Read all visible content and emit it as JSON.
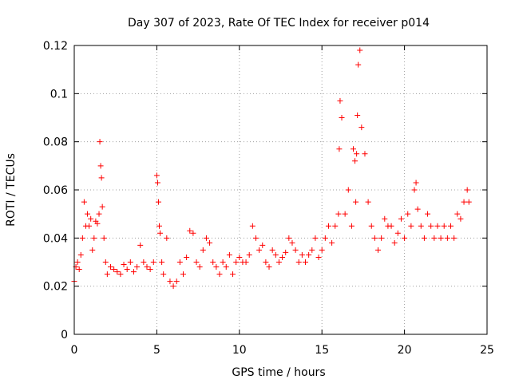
{
  "chart_data": {
    "type": "scatter",
    "title": "Day 307 of 2023, Rate Of TEC Index for receiver p014",
    "xlabel": "GPS time / hours",
    "ylabel": "ROTI / TECUs",
    "xlim": [
      0,
      25
    ],
    "ylim": [
      0,
      0.12
    ],
    "x_ticks": [
      "0",
      "5",
      "10",
      "15",
      "20",
      "25"
    ],
    "y_ticks": [
      "0",
      "0.02",
      "0.04",
      "0.06",
      "0.08",
      "0.1",
      "0.12"
    ],
    "grid": true,
    "marker": "+",
    "color": "#ff0000",
    "series": [
      {
        "x": [
          0.0,
          0.1,
          0.2,
          0.3,
          0.4,
          0.5,
          0.6,
          0.7,
          0.8,
          0.9,
          1.0,
          1.1,
          1.2,
          1.3,
          1.4,
          1.5,
          1.55,
          1.6,
          1.65,
          1.7,
          1.8,
          1.9,
          2.0,
          2.2,
          2.4,
          2.6,
          2.8,
          3.0,
          3.2,
          3.4,
          3.6,
          3.8,
          4.0,
          4.2,
          4.4,
          4.6,
          4.8,
          5.0,
          5.05,
          5.1,
          5.15,
          5.2,
          5.3,
          5.4,
          5.6,
          5.8,
          6.0,
          6.2,
          6.4,
          6.6,
          6.8,
          7.0,
          7.2,
          7.4,
          7.6,
          7.8,
          8.0,
          8.2,
          8.4,
          8.6,
          8.8,
          9.0,
          9.2,
          9.4,
          9.6,
          9.8,
          10.0,
          10.2,
          10.4,
          10.6,
          10.8,
          11.0,
          11.2,
          11.4,
          11.6,
          11.8,
          12.0,
          12.2,
          12.4,
          12.6,
          12.8,
          13.0,
          13.2,
          13.4,
          13.6,
          13.8,
          14.0,
          14.2,
          14.4,
          14.6,
          14.8,
          15.0,
          15.2,
          15.4,
          15.6,
          15.8,
          16.0,
          16.05,
          16.1,
          16.2,
          16.4,
          16.6,
          16.8,
          16.9,
          17.0,
          17.05,
          17.1,
          17.15,
          17.2,
          17.3,
          17.4,
          17.6,
          17.8,
          18.0,
          18.2,
          18.4,
          18.6,
          18.8,
          19.0,
          19.2,
          19.4,
          19.6,
          19.8,
          20.0,
          20.2,
          20.4,
          20.6,
          20.7,
          20.8,
          21.0,
          21.2,
          21.4,
          21.6,
          21.8,
          22.0,
          22.2,
          22.4,
          22.6,
          22.8,
          23.0,
          23.2,
          23.4,
          23.6,
          23.8,
          23.9
        ],
        "y": [
          0.022,
          0.028,
          0.03,
          0.027,
          0.033,
          0.04,
          0.055,
          0.045,
          0.05,
          0.045,
          0.048,
          0.035,
          0.04,
          0.047,
          0.046,
          0.05,
          0.08,
          0.07,
          0.065,
          0.053,
          0.04,
          0.03,
          0.025,
          0.028,
          0.027,
          0.026,
          0.025,
          0.029,
          0.027,
          0.03,
          0.026,
          0.028,
          0.037,
          0.03,
          0.028,
          0.027,
          0.03,
          0.066,
          0.063,
          0.055,
          0.045,
          0.042,
          0.03,
          0.025,
          0.04,
          0.022,
          0.02,
          0.022,
          0.03,
          0.025,
          0.032,
          0.043,
          0.042,
          0.03,
          0.028,
          0.035,
          0.04,
          0.038,
          0.03,
          0.028,
          0.025,
          0.03,
          0.028,
          0.033,
          0.025,
          0.03,
          0.032,
          0.03,
          0.03,
          0.033,
          0.045,
          0.04,
          0.035,
          0.037,
          0.03,
          0.028,
          0.035,
          0.033,
          0.03,
          0.032,
          0.034,
          0.04,
          0.038,
          0.035,
          0.03,
          0.033,
          0.03,
          0.033,
          0.035,
          0.04,
          0.032,
          0.035,
          0.04,
          0.045,
          0.038,
          0.045,
          0.05,
          0.077,
          0.097,
          0.09,
          0.05,
          0.06,
          0.045,
          0.077,
          0.072,
          0.055,
          0.075,
          0.091,
          0.112,
          0.118,
          0.086,
          0.075,
          0.055,
          0.045,
          0.04,
          0.035,
          0.04,
          0.048,
          0.045,
          0.045,
          0.038,
          0.042,
          0.048,
          0.04,
          0.05,
          0.045,
          0.06,
          0.063,
          0.052,
          0.045,
          0.04,
          0.05,
          0.045,
          0.04,
          0.045,
          0.04,
          0.045,
          0.04,
          0.045,
          0.04,
          0.05,
          0.048,
          0.055,
          0.06,
          0.055
        ]
      }
    ]
  }
}
